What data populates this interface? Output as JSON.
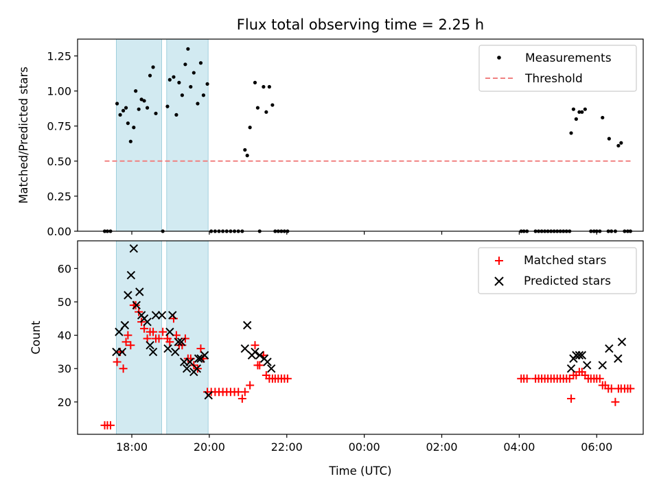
{
  "chart_data": [
    {
      "type": "scatter",
      "title": "Flux total observing time = 2.25 h",
      "xlabel": "",
      "ylabel": "Matched/Predicted stars",
      "x_unit": "hours since 00:00 UTC of the first night",
      "xlim": [
        16.6,
        31.2
      ],
      "ylim": [
        0,
        1.37
      ],
      "yticks": [
        "0.00",
        "0.25",
        "0.50",
        "0.75",
        "1.00",
        "1.25"
      ],
      "shaded_intervals": [
        [
          17.6,
          18.77
        ],
        [
          18.9,
          19.97
        ]
      ],
      "legend": {
        "position": "top-right",
        "entries": [
          "Measurements",
          "Threshold"
        ]
      },
      "series": [
        {
          "name": "Measurements",
          "color": "#000000",
          "marker": "dot",
          "points": [
            [
              17.3,
              0
            ],
            [
              17.37,
              0
            ],
            [
              17.45,
              0
            ],
            [
              17.62,
              0.91
            ],
            [
              17.7,
              0.83
            ],
            [
              17.78,
              0.86
            ],
            [
              17.85,
              0.88
            ],
            [
              17.9,
              0.77
            ],
            [
              17.97,
              0.64
            ],
            [
              18.05,
              0.74
            ],
            [
              18.1,
              1.0
            ],
            [
              18.18,
              0.87
            ],
            [
              18.25,
              0.94
            ],
            [
              18.32,
              0.93
            ],
            [
              18.4,
              0.88
            ],
            [
              18.47,
              1.11
            ],
            [
              18.55,
              1.17
            ],
            [
              18.62,
              0.84
            ],
            [
              18.8,
              0
            ],
            [
              18.92,
              0.89
            ],
            [
              18.98,
              1.08
            ],
            [
              19.08,
              1.1
            ],
            [
              19.15,
              0.83
            ],
            [
              19.22,
              1.06
            ],
            [
              19.3,
              0.97
            ],
            [
              19.38,
              1.19
            ],
            [
              19.45,
              1.3
            ],
            [
              19.52,
              1.03
            ],
            [
              19.6,
              1.13
            ],
            [
              19.7,
              0.91
            ],
            [
              19.78,
              1.2
            ],
            [
              19.85,
              0.97
            ],
            [
              19.95,
              1.05
            ],
            [
              20.05,
              0
            ],
            [
              20.15,
              0
            ],
            [
              20.25,
              0
            ],
            [
              20.35,
              0
            ],
            [
              20.45,
              0
            ],
            [
              20.55,
              0
            ],
            [
              20.65,
              0
            ],
            [
              20.75,
              0
            ],
            [
              20.85,
              0
            ],
            [
              20.92,
              0.58
            ],
            [
              20.98,
              0.54
            ],
            [
              21.05,
              0.74
            ],
            [
              21.18,
              1.06
            ],
            [
              21.25,
              0.88
            ],
            [
              21.3,
              0
            ],
            [
              21.4,
              1.03
            ],
            [
              21.47,
              0.85
            ],
            [
              21.55,
              1.03
            ],
            [
              21.63,
              0.9
            ],
            [
              21.7,
              0
            ],
            [
              21.78,
              0
            ],
            [
              21.86,
              0
            ],
            [
              21.94,
              0
            ],
            [
              22.02,
              0
            ],
            [
              28.05,
              0
            ],
            [
              28.12,
              0
            ],
            [
              28.2,
              0
            ],
            [
              28.42,
              0
            ],
            [
              28.5,
              0
            ],
            [
              28.58,
              0
            ],
            [
              28.66,
              0
            ],
            [
              28.74,
              0
            ],
            [
              28.82,
              0
            ],
            [
              28.9,
              0
            ],
            [
              28.98,
              0
            ],
            [
              29.06,
              0
            ],
            [
              29.14,
              0
            ],
            [
              29.22,
              0
            ],
            [
              29.3,
              0
            ],
            [
              29.34,
              0.7
            ],
            [
              29.4,
              0.87
            ],
            [
              29.47,
              0.8
            ],
            [
              29.55,
              0.85
            ],
            [
              29.62,
              0.85
            ],
            [
              29.7,
              0.87
            ],
            [
              29.85,
              0
            ],
            [
              29.93,
              0
            ],
            [
              30.0,
              0
            ],
            [
              30.08,
              0
            ],
            [
              30.15,
              0.81
            ],
            [
              30.3,
              0
            ],
            [
              30.32,
              0.66
            ],
            [
              30.38,
              0
            ],
            [
              30.48,
              0
            ],
            [
              30.56,
              0.61
            ],
            [
              30.63,
              0.63
            ],
            [
              30.72,
              0
            ],
            [
              30.8,
              0
            ],
            [
              30.87,
              0
            ]
          ]
        },
        {
          "name": "Threshold",
          "color": "#f08080",
          "marker": "dashed-line",
          "points": [
            [
              17.3,
              0.5
            ],
            [
              30.93,
              0.5
            ]
          ]
        }
      ]
    },
    {
      "type": "scatter",
      "title": "",
      "xlabel": "Time (UTC)",
      "ylabel": "Count",
      "x_unit": "hours since 00:00 UTC of the first night",
      "xlim": [
        16.6,
        31.2
      ],
      "ylim": [
        10.3,
        68.3
      ],
      "xticks": [
        [
          18,
          "18:00"
        ],
        [
          20,
          "20:00"
        ],
        [
          22,
          "22:00"
        ],
        [
          24,
          "00:00"
        ],
        [
          26,
          "02:00"
        ],
        [
          28,
          "04:00"
        ],
        [
          30,
          "06:00"
        ]
      ],
      "yticks": [
        "20",
        "30",
        "40",
        "50",
        "60"
      ],
      "shaded_intervals": [
        [
          17.6,
          18.77
        ],
        [
          18.9,
          19.97
        ]
      ],
      "legend": {
        "position": "top-right",
        "entries": [
          "Matched stars",
          "Predicted stars"
        ]
      },
      "series": [
        {
          "name": "Matched stars",
          "color": "#ff0000",
          "marker": "plus",
          "points": [
            [
              17.3,
              13
            ],
            [
              17.37,
              13
            ],
            [
              17.45,
              13
            ],
            [
              17.62,
              32
            ],
            [
              17.7,
              35
            ],
            [
              17.78,
              30
            ],
            [
              17.85,
              38
            ],
            [
              17.9,
              40
            ],
            [
              17.97,
              37
            ],
            [
              18.05,
              49
            ],
            [
              18.1,
              49
            ],
            [
              18.18,
              47
            ],
            [
              18.25,
              44
            ],
            [
              18.32,
              42
            ],
            [
              18.4,
              39
            ],
            [
              18.47,
              41
            ],
            [
              18.55,
              41
            ],
            [
              18.62,
              39
            ],
            [
              18.7,
              39
            ],
            [
              18.8,
              41
            ],
            [
              18.92,
              39
            ],
            [
              18.98,
              38
            ],
            [
              19.08,
              45
            ],
            [
              19.15,
              40
            ],
            [
              19.22,
              37
            ],
            [
              19.3,
              37
            ],
            [
              19.38,
              39
            ],
            [
              19.45,
              33
            ],
            [
              19.52,
              33
            ],
            [
              19.6,
              31
            ],
            [
              19.7,
              30
            ],
            [
              19.78,
              36
            ],
            [
              19.85,
              33
            ],
            [
              19.95,
              23
            ],
            [
              20.05,
              23
            ],
            [
              20.15,
              23
            ],
            [
              20.25,
              23
            ],
            [
              20.35,
              23
            ],
            [
              20.45,
              23
            ],
            [
              20.55,
              23
            ],
            [
              20.65,
              23
            ],
            [
              20.75,
              23
            ],
            [
              20.85,
              21
            ],
            [
              20.92,
              23
            ],
            [
              21.05,
              25
            ],
            [
              21.18,
              37
            ],
            [
              21.25,
              31
            ],
            [
              21.3,
              31
            ],
            [
              21.4,
              34
            ],
            [
              21.47,
              28
            ],
            [
              21.55,
              27
            ],
            [
              21.63,
              27
            ],
            [
              21.7,
              27
            ],
            [
              21.78,
              27
            ],
            [
              21.86,
              27
            ],
            [
              21.94,
              27
            ],
            [
              22.02,
              27
            ],
            [
              28.05,
              27
            ],
            [
              28.12,
              27
            ],
            [
              28.2,
              27
            ],
            [
              28.42,
              27
            ],
            [
              28.5,
              27
            ],
            [
              28.58,
              27
            ],
            [
              28.66,
              27
            ],
            [
              28.74,
              27
            ],
            [
              28.82,
              27
            ],
            [
              28.9,
              27
            ],
            [
              28.98,
              27
            ],
            [
              29.06,
              27
            ],
            [
              29.14,
              27
            ],
            [
              29.22,
              27
            ],
            [
              29.3,
              27
            ],
            [
              29.34,
              21
            ],
            [
              29.4,
              28
            ],
            [
              29.47,
              28
            ],
            [
              29.55,
              29
            ],
            [
              29.62,
              29
            ],
            [
              29.7,
              28
            ],
            [
              29.78,
              27
            ],
            [
              29.85,
              27
            ],
            [
              29.93,
              27
            ],
            [
              30.0,
              27
            ],
            [
              30.08,
              27
            ],
            [
              30.15,
              25
            ],
            [
              30.22,
              25
            ],
            [
              30.3,
              24
            ],
            [
              30.38,
              24
            ],
            [
              30.48,
              20
            ],
            [
              30.56,
              24
            ],
            [
              30.63,
              24
            ],
            [
              30.72,
              24
            ],
            [
              30.8,
              24
            ],
            [
              30.87,
              24
            ]
          ]
        },
        {
          "name": "Predicted stars",
          "color": "#000000",
          "marker": "x",
          "points": [
            [
              17.6,
              35
            ],
            [
              17.67,
              41
            ],
            [
              17.75,
              35
            ],
            [
              17.82,
              43
            ],
            [
              17.9,
              52
            ],
            [
              17.98,
              58
            ],
            [
              18.05,
              66
            ],
            [
              18.12,
              49
            ],
            [
              18.2,
              53
            ],
            [
              18.25,
              46
            ],
            [
              18.32,
              45
            ],
            [
              18.4,
              44
            ],
            [
              18.47,
              37
            ],
            [
              18.55,
              35
            ],
            [
              18.62,
              46
            ],
            [
              18.78,
              46
            ],
            [
              18.93,
              36
            ],
            [
              18.98,
              41
            ],
            [
              19.05,
              46
            ],
            [
              19.12,
              35
            ],
            [
              19.2,
              38
            ],
            [
              19.28,
              38
            ],
            [
              19.35,
              32
            ],
            [
              19.42,
              30
            ],
            [
              19.5,
              32
            ],
            [
              19.6,
              29
            ],
            [
              19.68,
              30
            ],
            [
              19.72,
              33
            ],
            [
              19.78,
              33
            ],
            [
              19.88,
              34
            ],
            [
              19.98,
              22
            ],
            [
              20.92,
              36
            ],
            [
              20.98,
              43
            ],
            [
              21.1,
              34
            ],
            [
              21.18,
              35
            ],
            [
              21.3,
              34
            ],
            [
              21.42,
              33
            ],
            [
              21.5,
              32
            ],
            [
              21.6,
              30
            ],
            [
              29.34,
              30
            ],
            [
              29.4,
              33
            ],
            [
              29.47,
              34
            ],
            [
              29.55,
              34
            ],
            [
              29.62,
              34
            ],
            [
              29.75,
              31
            ],
            [
              30.15,
              31
            ],
            [
              30.32,
              36
            ],
            [
              30.55,
              33
            ],
            [
              30.65,
              38
            ]
          ]
        }
      ]
    }
  ]
}
